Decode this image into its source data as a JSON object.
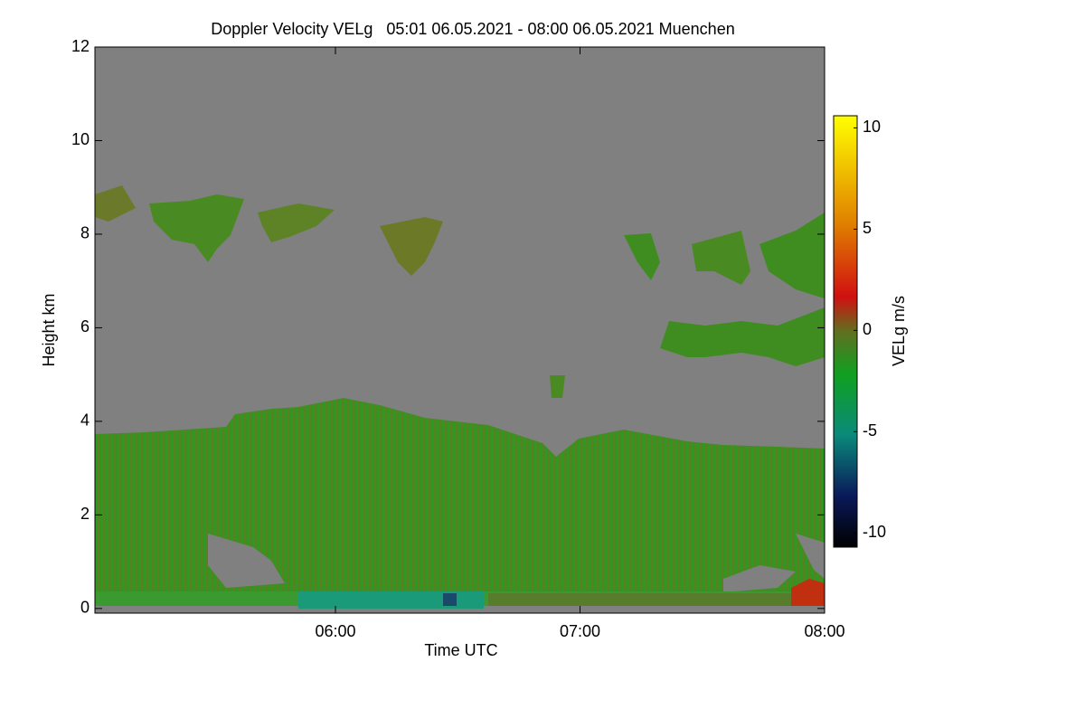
{
  "chart_data": {
    "type": "heatmap",
    "title": "Doppler Velocity VELg   05:01 06.05.2021 - 08:00 06.05.2021 Muenchen",
    "x_label": "Time UTC",
    "y_label": "Height km",
    "xlim": [
      5.0167,
      8.0
    ],
    "xticks": [
      {
        "value": 6,
        "label": "06:00"
      },
      {
        "value": 7,
        "label": "07:00"
      },
      {
        "value": 8,
        "label": "08:00"
      }
    ],
    "ylim": [
      -0.1,
      12
    ],
    "yticks": [
      0,
      2,
      4,
      6,
      8,
      10,
      12
    ],
    "colorbar": {
      "label": "VELg m/s",
      "lim": [
        -10.7,
        10.6
      ],
      "ticks": [
        -10,
        -5,
        0,
        5,
        10
      ]
    }
  }
}
